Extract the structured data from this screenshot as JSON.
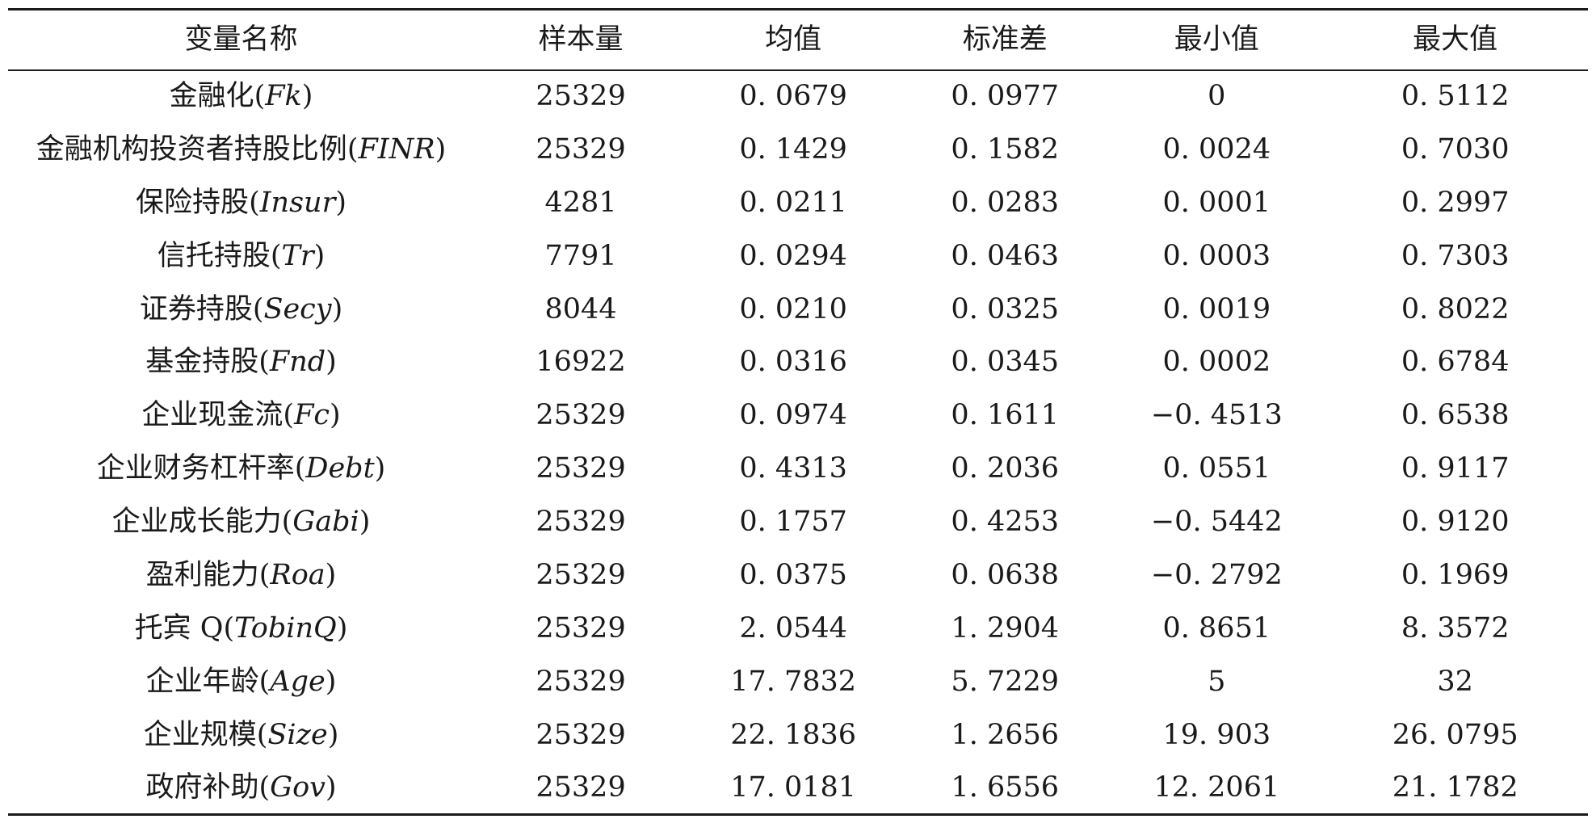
{
  "table": {
    "headers": [
      "变量名称",
      "样本量",
      "均值",
      "标准差",
      "最小值",
      "最大值"
    ],
    "rows": [
      {
        "name": "金融化",
        "abbr": "Fk",
        "n": "25329",
        "mean": "0. 0679",
        "sd": "0. 0977",
        "min": "0",
        "max": "0. 5112"
      },
      {
        "name": "金融机构投资者持股比例",
        "abbr": "FINR",
        "n": "25329",
        "mean": "0. 1429",
        "sd": "0. 1582",
        "min": "0. 0024",
        "max": "0. 7030"
      },
      {
        "name": "保险持股",
        "abbr": "Insur",
        "n": "4281",
        "mean": "0. 0211",
        "sd": "0. 0283",
        "min": "0. 0001",
        "max": "0. 2997"
      },
      {
        "name": "信托持股",
        "abbr": "Tr",
        "n": "7791",
        "mean": "0. 0294",
        "sd": "0. 0463",
        "min": "0. 0003",
        "max": "0. 7303"
      },
      {
        "name": "证券持股",
        "abbr": "Secy",
        "n": "8044",
        "mean": "0. 0210",
        "sd": "0. 0325",
        "min": "0. 0019",
        "max": "0. 8022"
      },
      {
        "name": "基金持股",
        "abbr": "Fnd",
        "n": "16922",
        "mean": "0. 0316",
        "sd": "0. 0345",
        "min": "0. 0002",
        "max": "0. 6784"
      },
      {
        "name": "企业现金流",
        "abbr": "Fc",
        "n": "25329",
        "mean": "0. 0974",
        "sd": "0. 1611",
        "min": "−0. 4513",
        "max": "0. 6538"
      },
      {
        "name": "企业财务杠杆率",
        "abbr": "Debt",
        "n": "25329",
        "mean": "0. 4313",
        "sd": "0. 2036",
        "min": "0. 0551",
        "max": "0. 9117"
      },
      {
        "name": "企业成长能力",
        "abbr": "Gabi",
        "n": "25329",
        "mean": "0. 1757",
        "sd": "0. 4253",
        "min": "−0. 5442",
        "max": "0. 9120"
      },
      {
        "name": "盈利能力",
        "abbr": "Roa",
        "n": "25329",
        "mean": "0. 0375",
        "sd": "0. 0638",
        "min": "−0. 2792",
        "max": "0. 1969"
      },
      {
        "name": "托宾 Q",
        "abbr": "TobinQ",
        "n": "25329",
        "mean": "2. 0544",
        "sd": "1. 2904",
        "min": "0. 8651",
        "max": "8. 3572"
      },
      {
        "name": "企业年龄",
        "abbr": "Age",
        "n": "25329",
        "mean": "17. 7832",
        "sd": "5. 7229",
        "min": "5",
        "max": "32"
      },
      {
        "name": "企业规模",
        "abbr": "Size",
        "n": "25329",
        "mean": "22. 1836",
        "sd": "1. 2656",
        "min": "19. 903",
        "max": "26. 0795"
      },
      {
        "name": "政府补助",
        "abbr": "Gov",
        "n": "25329",
        "mean": "17. 0181",
        "sd": "1. 6556",
        "min": "12. 2061",
        "max": "21. 1782"
      }
    ]
  }
}
